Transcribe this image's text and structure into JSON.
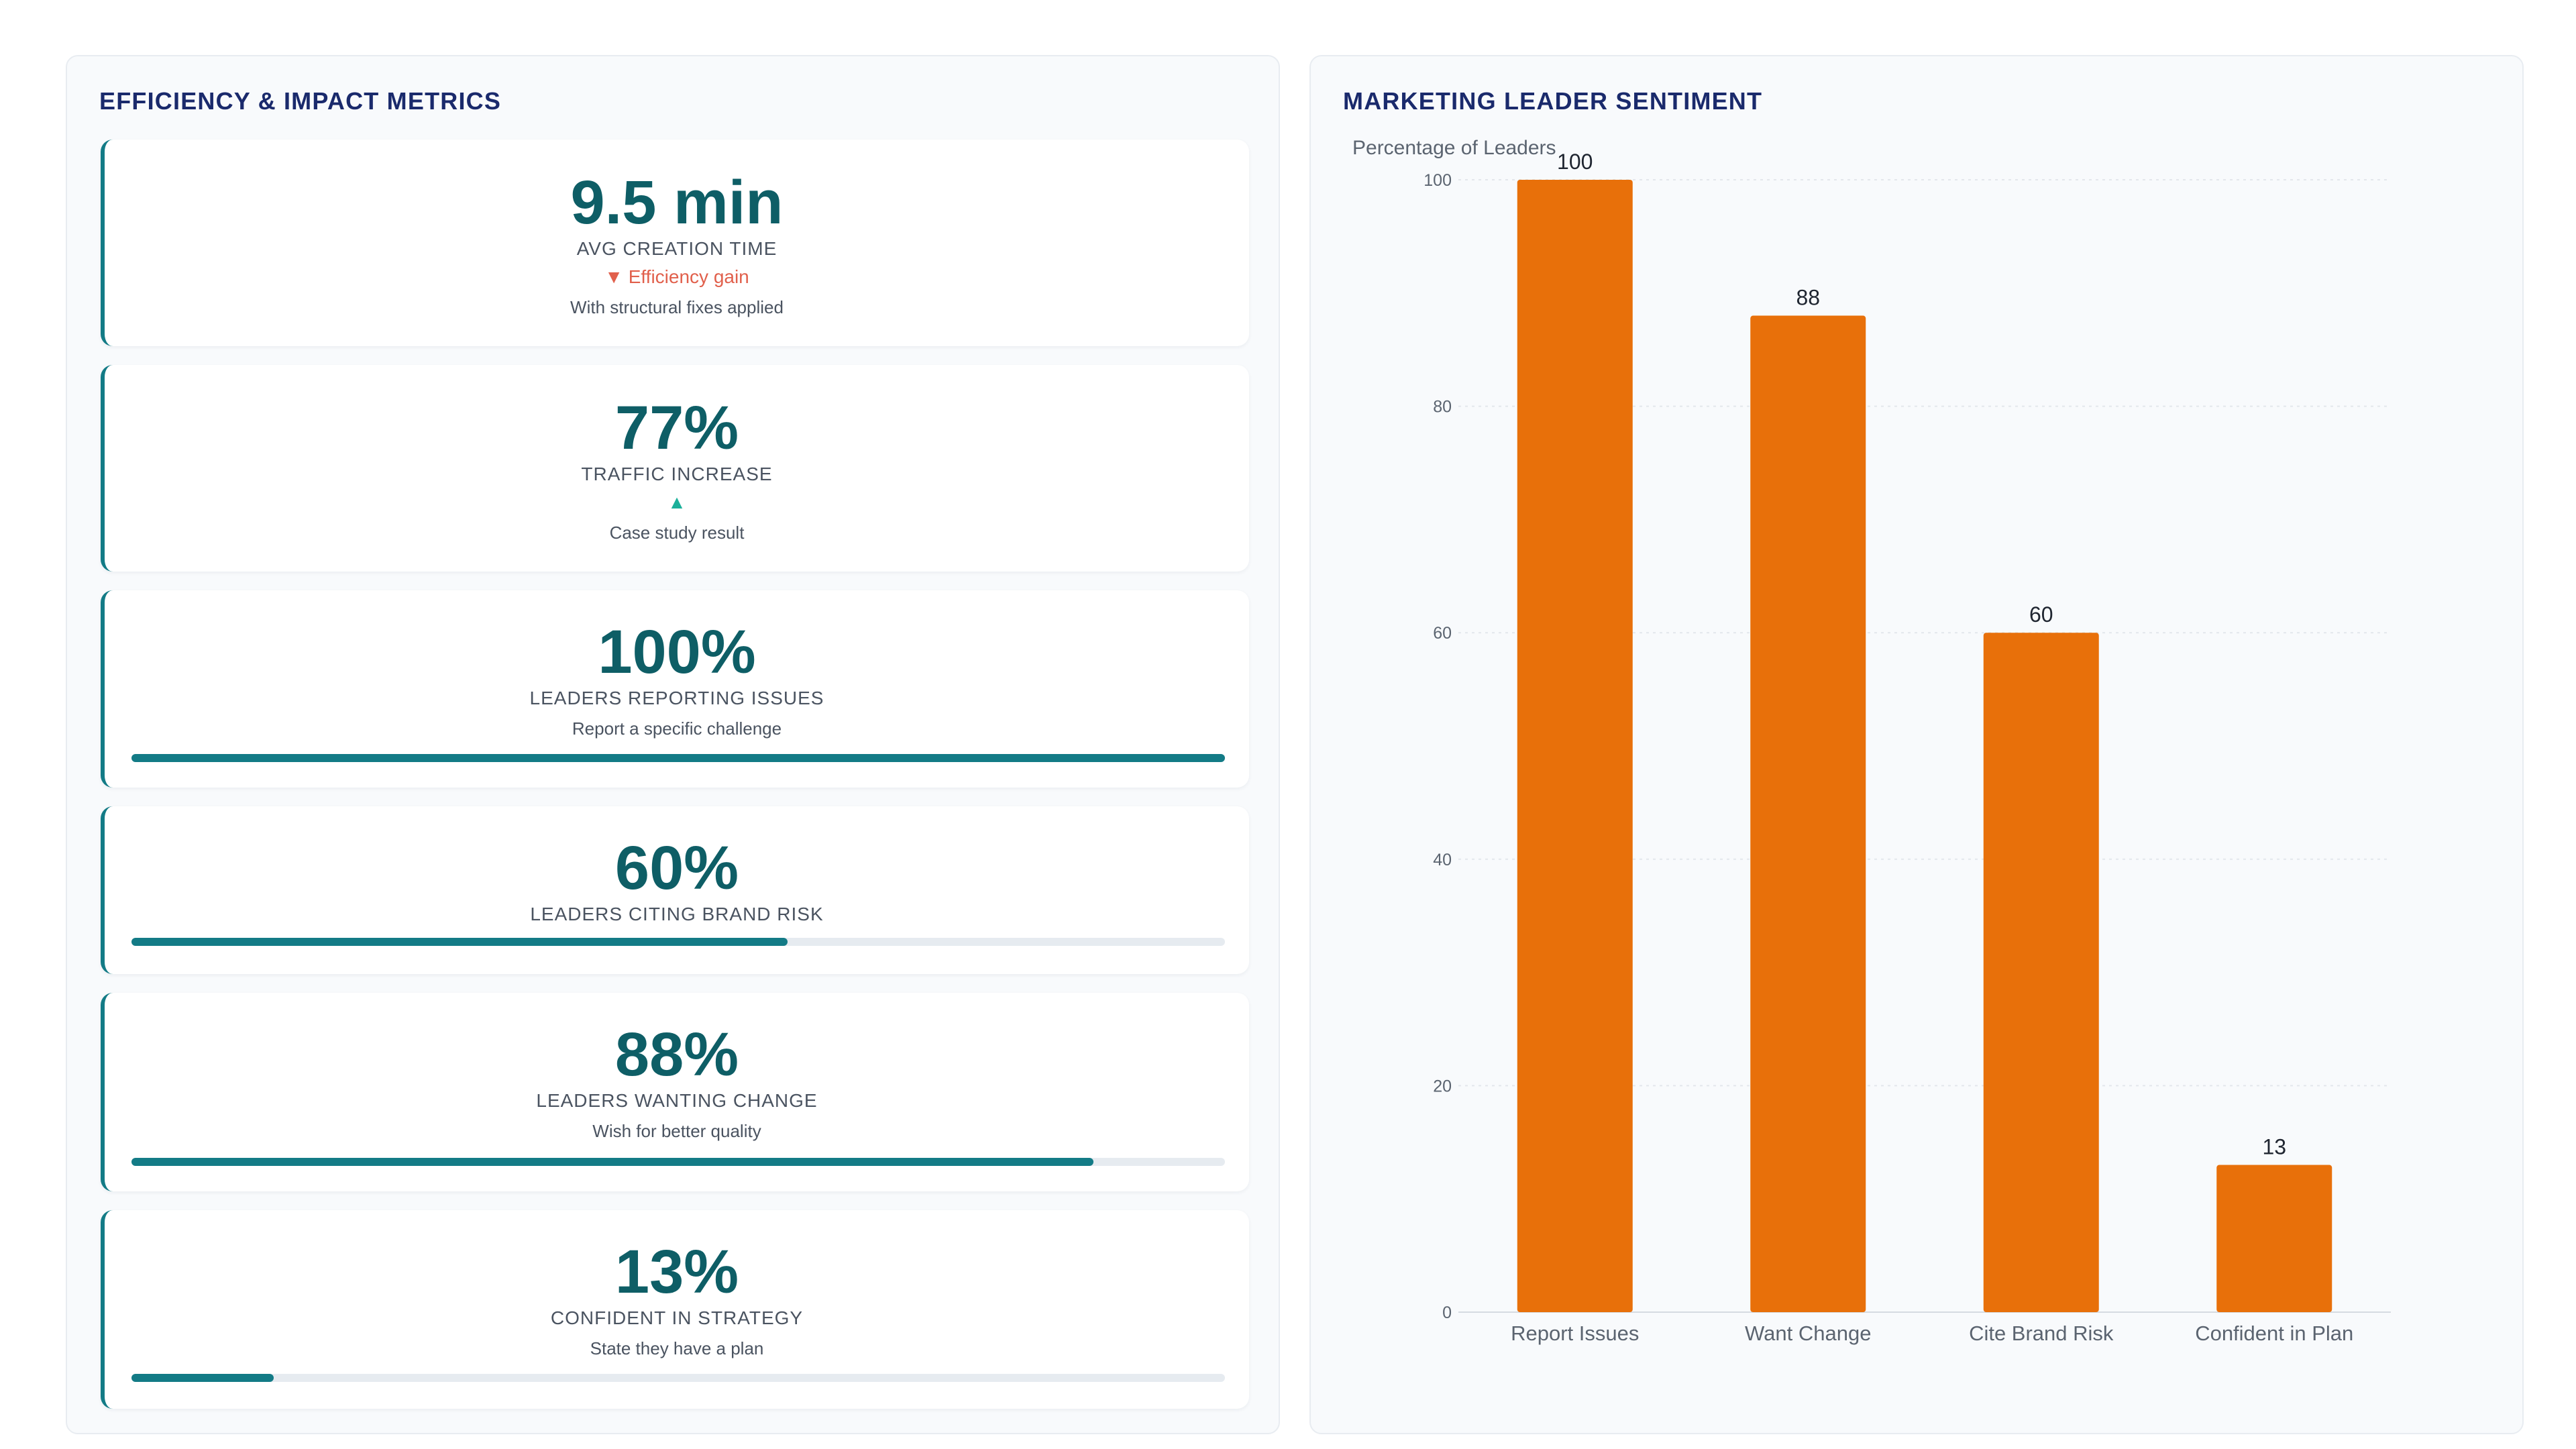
{
  "metrics_panel": {
    "title": "EFFICIENCY & IMPACT METRICS",
    "cards": [
      {
        "value": "9.5 min",
        "label": "AVG CREATION TIME",
        "change": "▼ Efficiency gain",
        "change_color": "#e1604c",
        "note": "With structural fixes applied"
      },
      {
        "value": "77%",
        "label": "TRAFFIC INCREASE",
        "change": "▲",
        "change_color": "#1bb09a",
        "note": "Case study result"
      },
      {
        "value": "100%",
        "label": "LEADERS REPORTING ISSUES",
        "note": "Report a specific challenge",
        "progress": 1.0
      },
      {
        "value": "60%",
        "label": "LEADERS CITING BRAND RISK",
        "progress": 0.6
      },
      {
        "value": "88%",
        "label": "LEADERS WANTING CHANGE",
        "note": "Wish for better quality",
        "progress": 0.88
      },
      {
        "value": "13%",
        "label": "CONFIDENT IN STRATEGY",
        "note": "State they have a plan",
        "progress": 0.13
      }
    ]
  },
  "chart_panel": {
    "title": "MARKETING LEADER SENTIMENT"
  },
  "chart_data": {
    "type": "bar",
    "categories": [
      "Report Issues",
      "Want Change",
      "Cite Brand Risk",
      "Confident in Plan"
    ],
    "values": [
      100,
      88,
      60,
      13
    ],
    "data_labels": [
      "100",
      "88",
      "60",
      "13"
    ],
    "title": "",
    "xlabel": "",
    "ylabel": "Percentage of Leaders",
    "ylim": [
      0,
      100
    ],
    "yticks": [
      "0",
      "20",
      "40",
      "60",
      "80",
      "100"
    ],
    "grid": true,
    "bar_color": "#e8700a"
  },
  "colors": {
    "accent": "#137b86",
    "value_text": "#0e5e66",
    "title_text": "#1a2a6c"
  }
}
